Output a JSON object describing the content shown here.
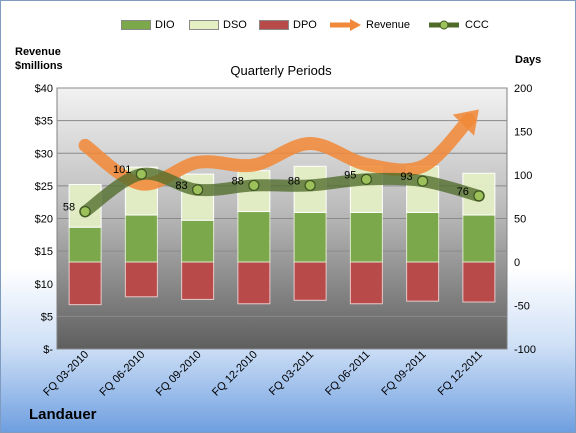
{
  "chart_data": {
    "type": "bar",
    "title": "Quarterly Periods",
    "company": "Landauer",
    "left_axis_title": "Revenue $millions",
    "right_axis_title": "Days",
    "categories": [
      "FQ 03-2010",
      "FQ 06-2010",
      "FQ 09-2010",
      "FQ 12-2010",
      "FQ 03-2011",
      "FQ 06-2011",
      "FQ 09-2011",
      "FQ 12-2011"
    ],
    "left_ticks": [
      "$-",
      "$5",
      "$10",
      "$15",
      "$20",
      "$25",
      "$30",
      "$35",
      "$40"
    ],
    "left_ylim": [
      0,
      40
    ],
    "right_ticks": [
      "-100",
      "-50",
      "0",
      "50",
      "100",
      "150",
      "200"
    ],
    "right_ylim": [
      -100,
      200
    ],
    "grid": true,
    "legend_position": "top",
    "series": [
      {
        "name": "DIO",
        "kind": "bar",
        "axis": "right",
        "color": "#7aa84a",
        "values": [
          40,
          54,
          48,
          58,
          57,
          57,
          57,
          54
        ]
      },
      {
        "name": "DSO",
        "kind": "bar",
        "axis": "right",
        "color": "#e4efc4",
        "values": [
          49,
          55,
          53,
          47,
          53,
          53,
          53,
          48
        ]
      },
      {
        "name": "DPO",
        "kind": "bar",
        "axis": "right",
        "color": "#b94a4a",
        "values": [
          -49,
          -40,
          -43,
          -48,
          -44,
          -48,
          -45,
          -46
        ]
      },
      {
        "name": "Revenue",
        "kind": "line",
        "axis": "left",
        "color": "#f08a3a",
        "values": [
          31.2,
          25.3,
          28.6,
          28.2,
          31.5,
          28.3,
          28.0,
          36.7
        ]
      },
      {
        "name": "CCC",
        "kind": "line",
        "axis": "right",
        "color": "#4f6b2a",
        "values": [
          58,
          101,
          83,
          88,
          88,
          95,
          93,
          76
        ],
        "labels": [
          "58",
          "101",
          "83",
          "88",
          "88",
          "95",
          "93",
          "76"
        ]
      }
    ]
  }
}
